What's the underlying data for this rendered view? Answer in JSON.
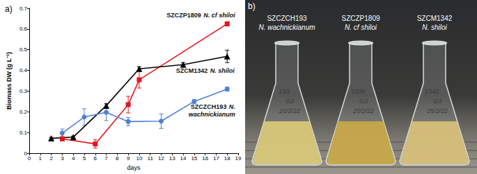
{
  "chart_data": {
    "type": "line",
    "title": "a)",
    "x_label": "days",
    "y_label": "Biomass DW (g L⁻¹)",
    "xlim": [
      0,
      19
    ],
    "xticks": [
      0,
      1,
      2,
      3,
      4,
      5,
      6,
      7,
      8,
      9,
      10,
      11,
      12,
      13,
      14,
      15,
      16,
      17,
      18,
      19
    ],
    "ylim": [
      0,
      0.7
    ],
    "yticks": [
      0,
      0.1,
      0.2,
      0.3,
      0.4,
      0.5,
      0.6,
      0.7
    ],
    "grid": false,
    "series": [
      {
        "name": "SZCZP1809 N. cf shiloi",
        "color": "#e8141b",
        "marker": "square",
        "x": [
          3,
          6,
          9,
          10,
          18
        ],
        "values": [
          0.07,
          0.045,
          0.235,
          0.355,
          0.625
        ],
        "errors": [
          0.01,
          0.02,
          0.04,
          0.04,
          0.01
        ]
      },
      {
        "name": "SZCM1342 N. shiloi",
        "color": "#000000",
        "marker": "triangle",
        "x": [
          2,
          4,
          7,
          10,
          14,
          18
        ],
        "values": [
          0.072,
          0.078,
          0.23,
          0.408,
          0.428,
          0.468
        ],
        "errors": [
          0.005,
          0.005,
          0.01,
          0.01,
          0.01,
          0.03
        ]
      },
      {
        "name": "SZCZCH193 N. wachnickianum",
        "color": "#4f7fd4",
        "marker": "circle",
        "x": [
          3,
          5,
          7,
          9,
          12,
          15,
          18
        ],
        "values": [
          0.097,
          0.175,
          0.198,
          0.153,
          0.155,
          0.25,
          0.31
        ],
        "errors": [
          0.02,
          0.04,
          0.04,
          0.02,
          0.035,
          0.01,
          0.01
        ]
      }
    ]
  },
  "panel_b": {
    "label": "b)",
    "flasks": [
      {
        "code": "SZCZCH193",
        "species": "N. wachnickianum",
        "notes": [
          "193",
          "G3",
          "25/2/22"
        ]
      },
      {
        "code": "SZCZP1809",
        "species": "N. cf shiloi",
        "notes": [
          "1809",
          "G3",
          "25/2/22"
        ]
      },
      {
        "code": "SZCM1342",
        "species": "N. shiloi",
        "notes": [
          "1342",
          "G3",
          "25/2/22"
        ]
      }
    ]
  }
}
